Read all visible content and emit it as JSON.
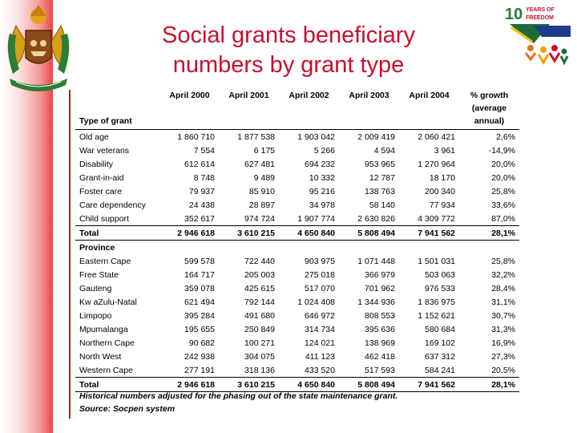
{
  "title_line1": "Social grants beneficiary",
  "title_line2": "numbers by grant type",
  "logo_text": "10 YEARS OF FREEDOM",
  "columns": [
    "April 2000",
    "April 2001",
    "April 2002",
    "April 2003",
    "April 2004"
  ],
  "growth_header": [
    "% growth",
    "(average",
    "annual)"
  ],
  "grant_section_label": "Type of grant",
  "grant_rows": [
    {
      "label": "Old age",
      "values": [
        "1 860 710",
        "1 877 538",
        "1 903 042",
        "2 009 419",
        "2 060 421"
      ],
      "growth": "2,6%"
    },
    {
      "label": "War veterans",
      "values": [
        "7 554",
        "6 175",
        "5 266",
        "4 594",
        "3 961"
      ],
      "growth": "-14,9%"
    },
    {
      "label": "Disability",
      "values": [
        "612 614",
        "627 481",
        "694 232",
        "953 965",
        "1 270 964"
      ],
      "growth": "20,0%"
    },
    {
      "label": "Grant-in-aid",
      "values": [
        "8 748",
        "9 489",
        "10 332",
        "12 787",
        "18 170"
      ],
      "growth": "20,0%"
    },
    {
      "label": "Foster care",
      "values": [
        "79 937",
        "85 910",
        "95 216",
        "138 763",
        "200 340"
      ],
      "growth": "25,8%"
    },
    {
      "label": "Care dependency",
      "values": [
        "24 438",
        "28 897",
        "34 978",
        "58 140",
        "77 934"
      ],
      "growth": "33,6%"
    },
    {
      "label": "Child support",
      "values": [
        "352 617",
        "974 724",
        "1 907 774",
        "2 630 826",
        "4 309 772"
      ],
      "growth": "87,0%"
    }
  ],
  "grant_total": {
    "label": "Total",
    "values": [
      "2 946 618",
      "3 610 215",
      "4 650 840",
      "5 808 494",
      "7 941 562"
    ],
    "growth": "28,1%"
  },
  "province_section_label": "Province",
  "province_rows": [
    {
      "label": "Eastern Cape",
      "values": [
        "599 578",
        "722 440",
        "903 975",
        "1 071 448",
        "1 501 031"
      ],
      "growth": "25,8%"
    },
    {
      "label": "Free State",
      "values": [
        "164 717",
        "205 003",
        "275 018",
        "366 979",
        "503 063"
      ],
      "growth": "32,2%"
    },
    {
      "label": "Gauteng",
      "values": [
        "359 078",
        "425 615",
        "517 070",
        "701 962",
        "976 533"
      ],
      "growth": "28,4%"
    },
    {
      "label": "Kw aZulu-Natal",
      "values": [
        "621 494",
        "792 144",
        "1 024 408",
        "1 344 936",
        "1 836 975"
      ],
      "growth": "31,1%"
    },
    {
      "label": "Limpopo",
      "values": [
        "395 284",
        "491 680",
        "646 972",
        "808 553",
        "1 152 621"
      ],
      "growth": "30,7%"
    },
    {
      "label": "Mpumalanga",
      "values": [
        "195 655",
        "250 849",
        "314 734",
        "395 636",
        "580 684"
      ],
      "growth": "31,3%"
    },
    {
      "label": "Northern Cape",
      "values": [
        "90 682",
        "100 271",
        "124 021",
        "138 969",
        "169 102"
      ],
      "growth": "16,9%"
    },
    {
      "label": "North West",
      "values": [
        "242 938",
        "304 075",
        "411 123",
        "462 418",
        "637 312"
      ],
      "growth": "27,3%"
    },
    {
      "label": "Western Cape",
      "values": [
        "277 191",
        "318 136",
        "433 520",
        "517 593",
        "584 241"
      ],
      "growth": "20,5%"
    }
  ],
  "province_total": {
    "label": "Total",
    "values": [
      "2 946 618",
      "3 610 215",
      "4 650 840",
      "5 808 494",
      "7 941 562"
    ],
    "growth": "28,1%"
  },
  "footnote": "Historical numbers adjusted for the phasing out of the state maintenance grant.",
  "source": "Source: Socpen system",
  "colors": {
    "title": "#c8102e",
    "band": "#ee4444",
    "rule": "#b01f1f"
  }
}
